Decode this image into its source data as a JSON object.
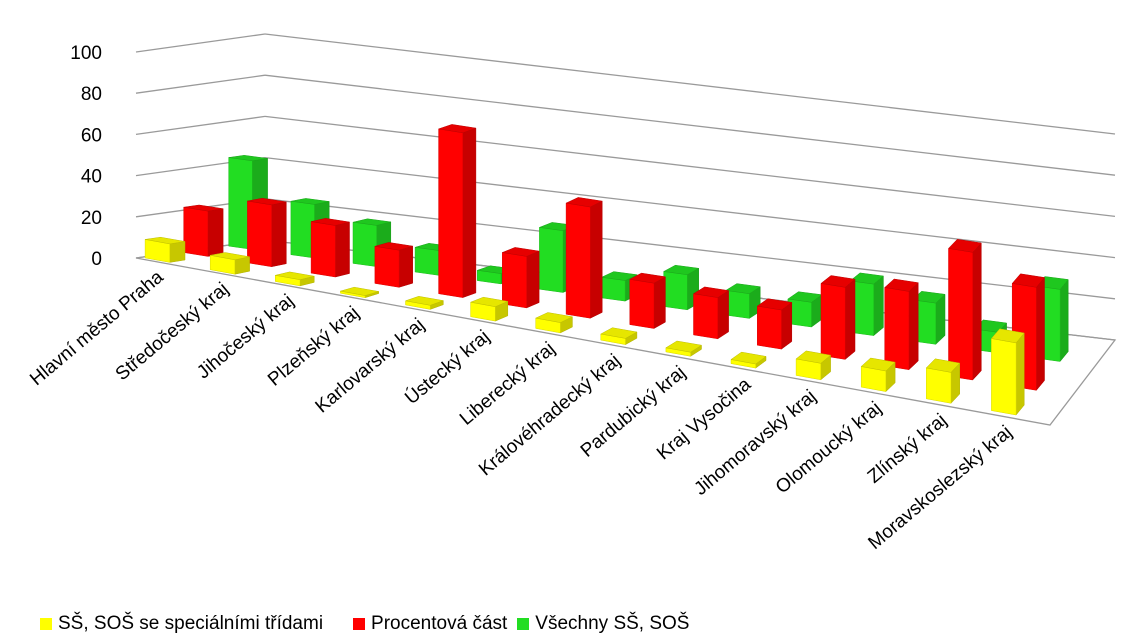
{
  "chart_data": {
    "type": "bar",
    "variant": "3d-clustered-column",
    "categories": [
      "Hlavní město Praha",
      "Středočeský kraj",
      "Jihočeský kraj",
      "Plzeňský kraj",
      "Karlovarský kraj",
      "Ústecký kraj",
      "Liberecký kraj",
      "Královéhradecký kraj",
      "Pardubický kraj",
      "Kraj Vysočina",
      "Jihomoravský kraj",
      "Olomoucký kraj",
      "Zlínský kraj",
      "Moravskoslezský kraj"
    ],
    "series": [
      {
        "name": "SŠ, SOŠ se speciálními třídami",
        "color": "#ffff00",
        "values": [
          9,
          7,
          3,
          1,
          2,
          7,
          5,
          3,
          2,
          2,
          8,
          10,
          15,
          35
        ]
      },
      {
        "name": "Procentová část",
        "color": "#ff0000",
        "values": [
          22,
          30,
          25,
          18,
          80,
          25,
          54,
          22,
          20,
          19,
          35,
          38,
          62,
          50
        ]
      },
      {
        "name": "Všechny SŠ, SOŠ",
        "color": "#22dd22",
        "values": [
          43,
          26,
          20,
          12,
          5,
          30,
          10,
          17,
          12,
          12,
          25,
          20,
          10,
          35
        ]
      }
    ],
    "ylim": [
      0,
      100
    ],
    "yticks": [
      "0",
      "20",
      "40",
      "60",
      "80",
      "100"
    ],
    "grid": true,
    "legend_position": "bottom-left"
  }
}
